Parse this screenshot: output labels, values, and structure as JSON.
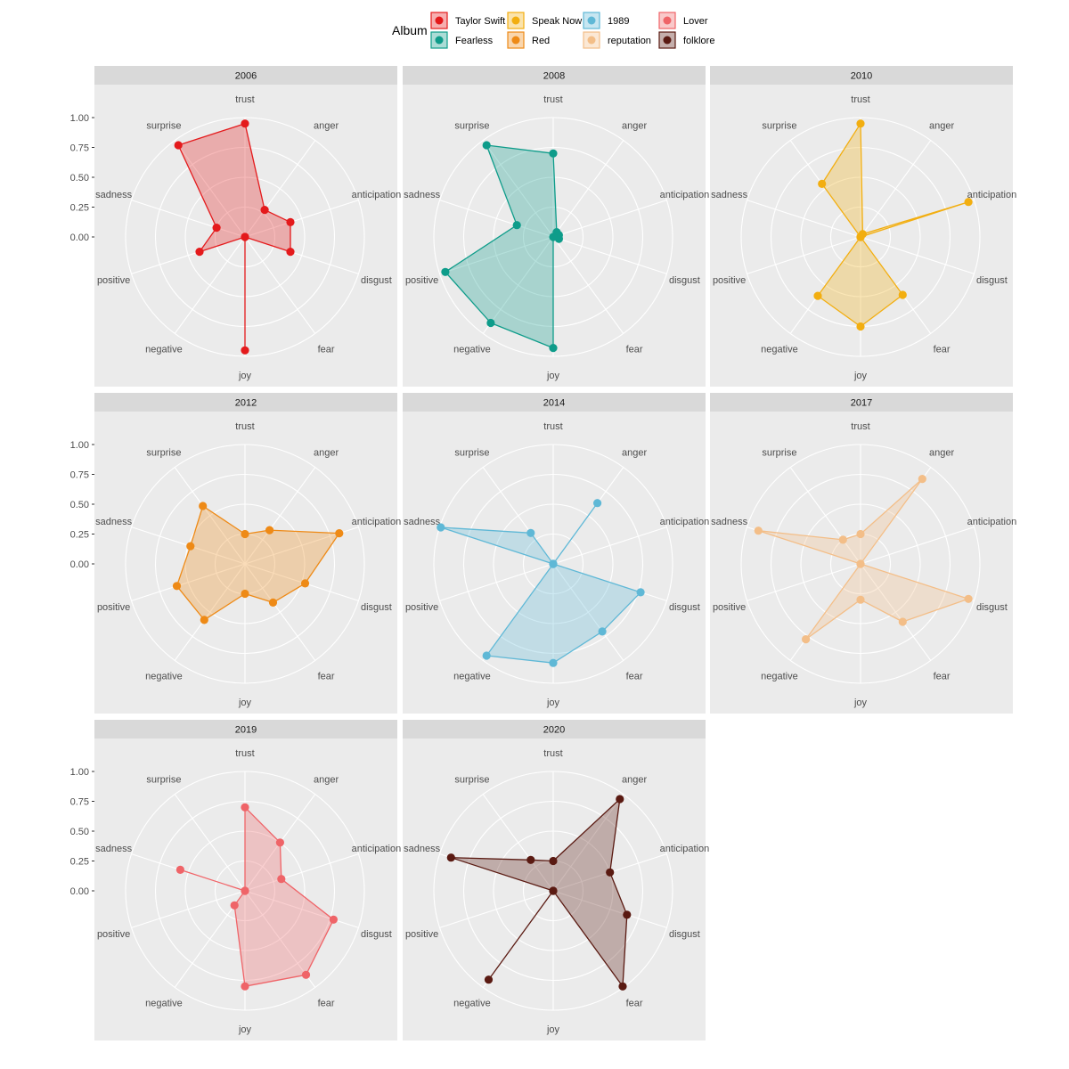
{
  "chart_data": {
    "type": "radar",
    "legend": {
      "title": "Album",
      "position": "top",
      "entries": [
        {
          "name": "Taylor Swift",
          "color": "#E41A1C"
        },
        {
          "name": "Fearless",
          "color": "#0E9C8A"
        },
        {
          "name": "Speak Now",
          "color": "#F2AE10"
        },
        {
          "name": "Red",
          "color": "#EE8A16"
        },
        {
          "name": "1989",
          "color": "#5FB8D6"
        },
        {
          "name": "reputation",
          "color": "#F3BE88"
        },
        {
          "name": "Lover",
          "color": "#EF6468"
        },
        {
          "name": "folklore",
          "color": "#5A1A12"
        }
      ]
    },
    "axes": [
      "trust",
      "anger",
      "anticipation",
      "disgust",
      "fear",
      "joy",
      "negative",
      "positive",
      "sadness",
      "surprise"
    ],
    "radial_ticks": [
      "0.00",
      "0.25",
      "0.50",
      "0.75",
      "1.00"
    ],
    "rlim": [
      0,
      1
    ],
    "grid": true,
    "panels": [
      {
        "label": "2006",
        "album": "Taylor Swift",
        "values": [
          0.95,
          0.28,
          0.4,
          0.4,
          0.0,
          0.95,
          0.0,
          0.4,
          0.25,
          0.95
        ]
      },
      {
        "label": "2008",
        "album": "Fearless",
        "values": [
          0.7,
          0.05,
          0.05,
          0.05,
          0.0,
          0.93,
          0.89,
          0.95,
          0.32,
          0.95
        ]
      },
      {
        "label": "2010",
        "album": "Speak Now",
        "values": [
          0.95,
          0.03,
          0.95,
          0.0,
          0.6,
          0.75,
          0.61,
          0.0,
          0.0,
          0.55
        ]
      },
      {
        "label": "2012",
        "album": "Red",
        "values": [
          0.25,
          0.35,
          0.83,
          0.53,
          0.4,
          0.25,
          0.58,
          0.6,
          0.48,
          0.6
        ]
      },
      {
        "label": "2014",
        "album": "1989",
        "values": [
          0.0,
          0.63,
          0.0,
          0.77,
          0.7,
          0.83,
          0.95,
          0.0,
          0.99,
          0.32
        ]
      },
      {
        "label": "2017",
        "album": "reputation",
        "values": [
          0.25,
          0.88,
          0.0,
          0.95,
          0.6,
          0.3,
          0.78,
          0.0,
          0.9,
          0.25
        ]
      },
      {
        "label": "2019",
        "album": "Lover",
        "values": [
          0.7,
          0.5,
          0.32,
          0.78,
          0.87,
          0.8,
          0.15,
          0.0,
          0.57,
          0.0
        ]
      },
      {
        "label": "2020",
        "album": "folklore",
        "values": [
          0.25,
          0.95,
          0.5,
          0.65,
          0.99,
          0.0,
          0.92,
          0.0,
          0.9,
          0.32
        ]
      }
    ]
  }
}
